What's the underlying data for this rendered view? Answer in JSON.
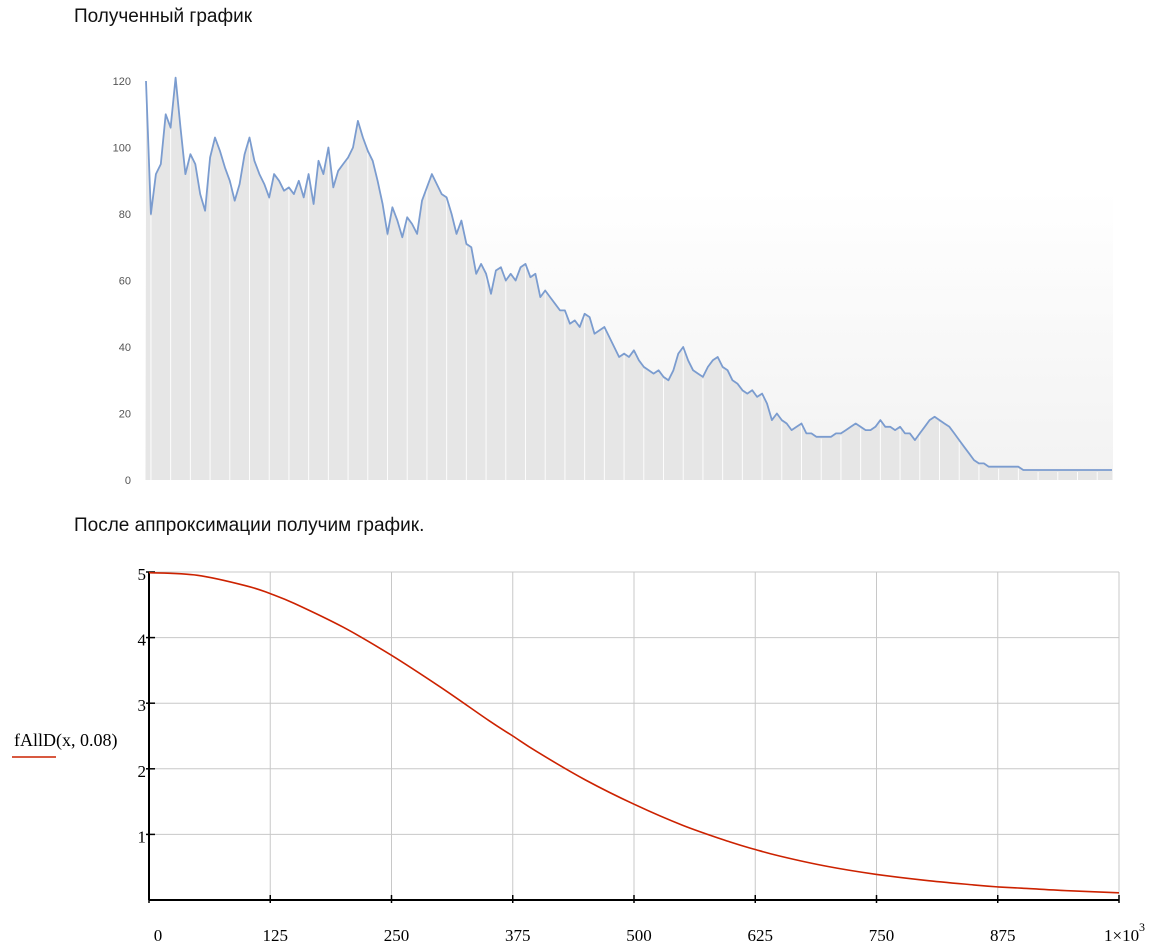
{
  "headings": {
    "first": "Полученный график",
    "second": "После аппроксимации получим график."
  },
  "chart_data": [
    {
      "type": "area",
      "title": "",
      "xlabel": "",
      "ylabel": "",
      "ylim": [
        0,
        120
      ],
      "yticks": [
        0,
        20,
        40,
        60,
        80,
        100,
        120
      ],
      "grid": false,
      "colors": {
        "line": "#7b9ccf",
        "fill": "#e6e6e6"
      },
      "series": [
        {
          "values": [
            120,
            80,
            92,
            95,
            110,
            106,
            121,
            106,
            92,
            98,
            95,
            86,
            81,
            97,
            103,
            99,
            94,
            90,
            84,
            89,
            98,
            103,
            96,
            92,
            89,
            85,
            92,
            90,
            87,
            88,
            86,
            90,
            85,
            92,
            83,
            96,
            92,
            100,
            88,
            93,
            95,
            97,
            100,
            108,
            103,
            99,
            96,
            90,
            83,
            74,
            82,
            78,
            73,
            79,
            77,
            74,
            84,
            88,
            92,
            89,
            86,
            85,
            80,
            74,
            78,
            71,
            70,
            62,
            65,
            62,
            56,
            63,
            64,
            60,
            62,
            60,
            64,
            65,
            61,
            62,
            55,
            57,
            55,
            53,
            51,
            51,
            47,
            48,
            46,
            50,
            49,
            44,
            45,
            46,
            43,
            40,
            37,
            38,
            37,
            39,
            36,
            34,
            33,
            32,
            33,
            31,
            30,
            33,
            38,
            40,
            36,
            33,
            32,
            31,
            34,
            36,
            37,
            34,
            33,
            30,
            29,
            27,
            26,
            27,
            25,
            26,
            23,
            18,
            20,
            18,
            17,
            15,
            16,
            17,
            14,
            14,
            13,
            13,
            13,
            13,
            14,
            14,
            15,
            16,
            17,
            16,
            15,
            15,
            16,
            18,
            16,
            16,
            15,
            16,
            14,
            14,
            12,
            14,
            16,
            18,
            19,
            18,
            17,
            16,
            14,
            12,
            10,
            8,
            6,
            5,
            5,
            4,
            4,
            4,
            4,
            4,
            4,
            4,
            3,
            3,
            3,
            3,
            3,
            3,
            3,
            3,
            3,
            3,
            3,
            3,
            3,
            3,
            3,
            3,
            3,
            3,
            3
          ]
        }
      ]
    },
    {
      "type": "line",
      "title": "",
      "ylabel": "fAllD(x, 0.08)",
      "xlabel": "",
      "xlim": [
        0,
        1000
      ],
      "ylim": [
        0,
        5
      ],
      "xticks": [
        {
          "value": 0,
          "label": "0"
        },
        {
          "value": 125,
          "label": "125"
        },
        {
          "value": 250,
          "label": "250"
        },
        {
          "value": 375,
          "label": "375"
        },
        {
          "value": 500,
          "label": "500"
        },
        {
          "value": 625,
          "label": "625"
        },
        {
          "value": 750,
          "label": "750"
        },
        {
          "value": 875,
          "label": "875"
        },
        {
          "value": 1000,
          "label": "1×10",
          "exponent": "3"
        }
      ],
      "yticks": [
        {
          "value": 1,
          "label": "1"
        },
        {
          "value": 2,
          "label": "2"
        },
        {
          "value": 3,
          "label": "3"
        },
        {
          "value": 4,
          "label": "4"
        },
        {
          "value": 5,
          "label": "5"
        }
      ],
      "grid": true,
      "colors": {
        "line": "#cc2200",
        "grid": "#c8c8c8",
        "axis": "#000000"
      },
      "series": [
        {
          "x": [
            0,
            50,
            100,
            125,
            150,
            200,
            250,
            300,
            350,
            375,
            400,
            450,
            500,
            550,
            600,
            625,
            650,
            700,
            750,
            800,
            850,
            875,
            900,
            950,
            1000
          ],
          "values": [
            4.99,
            4.95,
            4.79,
            4.67,
            4.52,
            4.16,
            3.73,
            3.25,
            2.74,
            2.5,
            2.26,
            1.83,
            1.46,
            1.14,
            0.88,
            0.77,
            0.67,
            0.51,
            0.39,
            0.3,
            0.23,
            0.2,
            0.18,
            0.14,
            0.11
          ]
        }
      ]
    }
  ]
}
